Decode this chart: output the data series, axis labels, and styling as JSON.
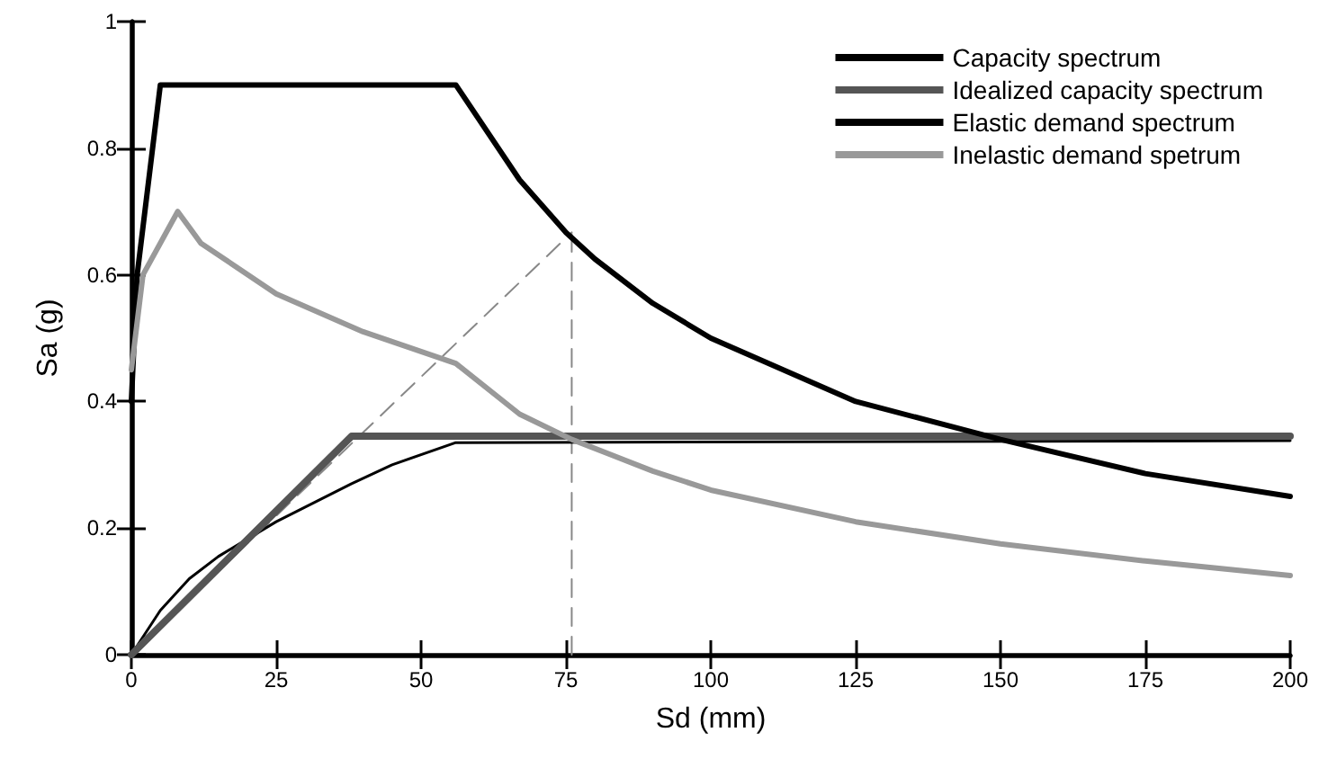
{
  "chart_data": {
    "type": "line",
    "xlabel": "Sd (mm)",
    "ylabel": "Sa (g)",
    "xlim": [
      0,
      200
    ],
    "xticks": [
      0,
      25,
      50,
      75,
      100,
      125,
      150,
      175,
      200
    ],
    "ylim": [
      0,
      1
    ],
    "yticks": [
      0,
      0.2,
      0.4,
      0.6,
      0.8,
      1
    ],
    "grid": false,
    "legend": "top right",
    "marker": "none",
    "line_style": "solid",
    "series": [
      {
        "name": "Capacity spectrum",
        "color": "#000000",
        "x": [
          0,
          5,
          10,
          15,
          25,
          38,
          45,
          56,
          200
        ],
        "values": [
          0,
          0.07,
          0.12,
          0.155,
          0.21,
          0.27,
          0.3,
          0.335,
          0.338
        ]
      },
      {
        "name": "Idealized capacity spectrum",
        "color": "#555555",
        "x": [
          0,
          38,
          200
        ],
        "values": [
          0,
          0.345,
          0.345
        ]
      },
      {
        "name": "Elastic demand spectrum",
        "color": "#000000",
        "x": [
          0,
          1,
          5,
          56,
          67,
          75,
          80,
          90,
          100,
          125,
          150,
          175,
          200
        ],
        "values": [
          0.4,
          0.6,
          0.9,
          0.9,
          0.75,
          0.667,
          0.625,
          0.555,
          0.5,
          0.4,
          0.34,
          0.286,
          0.25
        ]
      },
      {
        "name": "Inelastic demand spetrum",
        "color": "#999999",
        "x": [
          0,
          2,
          8,
          12,
          25,
          40,
          56,
          67,
          76,
          90,
          100,
          125,
          150,
          175,
          200
        ],
        "values": [
          0.45,
          0.6,
          0.7,
          0.65,
          0.57,
          0.51,
          0.46,
          0.38,
          0.34,
          0.29,
          0.26,
          0.21,
          0.175,
          0.148,
          0.125
        ]
      },
      {
        "color": "#888888",
        "line_style": "dashed",
        "x": [
          0,
          76
        ],
        "values": [
          0,
          0.667
        ]
      },
      {
        "color": "#888888",
        "line_style": "dashed",
        "x": [
          76,
          76
        ],
        "values": [
          0,
          0.667
        ]
      }
    ]
  }
}
